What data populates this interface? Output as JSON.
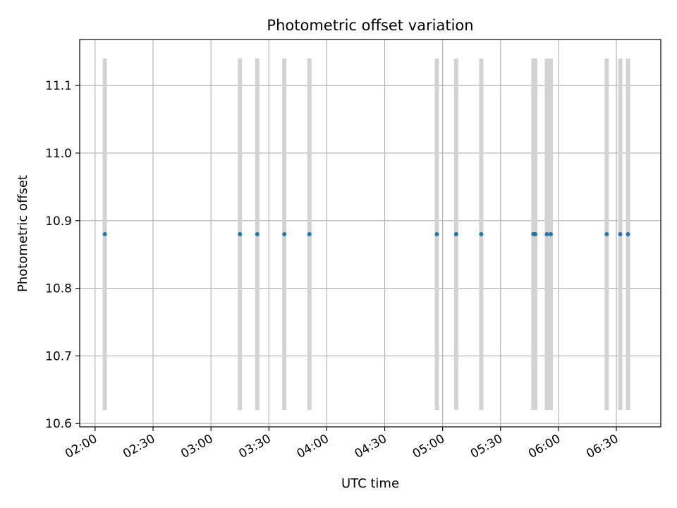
{
  "chart_data": {
    "type": "scatter",
    "title": "Photometric offset variation",
    "xlabel": "UTC time",
    "ylabel": "Photometric offset",
    "xlim": [
      "01:52",
      "06:53"
    ],
    "ylim": [
      10.595,
      11.168
    ],
    "grid": true,
    "x_ticks": [
      "02:00",
      "02:30",
      "03:00",
      "03:30",
      "04:00",
      "04:30",
      "05:00",
      "05:30",
      "06:00",
      "06:30"
    ],
    "y_ticks": [
      "10.6",
      "10.7",
      "10.8",
      "10.9",
      "11.0",
      "11.1"
    ],
    "band_range": [
      10.62,
      11.14
    ],
    "point_color": "#1f77b4",
    "band_color": "#d3d3d3",
    "times": [
      "02:05",
      "03:15",
      "03:24",
      "03:38",
      "03:51",
      "04:57",
      "05:07",
      "05:20",
      "05:47",
      "05:48",
      "05:54",
      "05:56",
      "06:25",
      "06:32",
      "06:36"
    ],
    "offset": [
      10.88,
      10.88,
      10.88,
      10.88,
      10.88,
      10.88,
      10.88,
      10.88,
      10.88,
      10.88,
      10.88,
      10.88,
      10.88,
      10.88,
      10.88
    ]
  }
}
